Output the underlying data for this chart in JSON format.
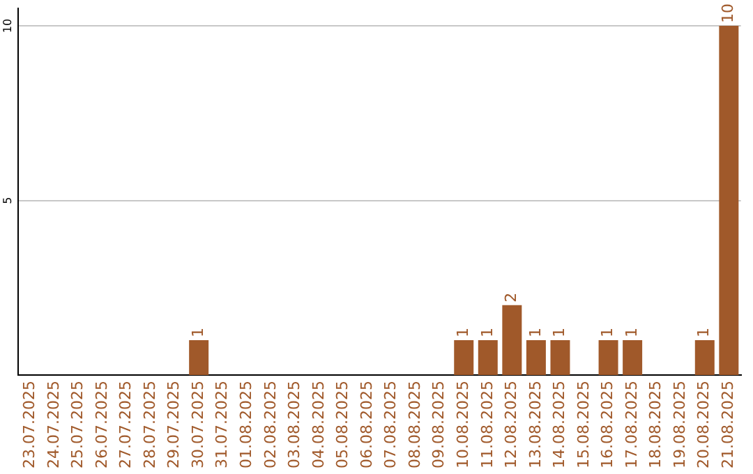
{
  "chart_data": {
    "type": "bar",
    "categories": [
      "23.07.2025",
      "24.07.2025",
      "25.07.2025",
      "26.07.2025",
      "27.07.2025",
      "28.07.2025",
      "29.07.2025",
      "30.07.2025",
      "31.07.2025",
      "01.08.2025",
      "02.08.2025",
      "03.08.2025",
      "04.08.2025",
      "05.08.2025",
      "06.08.2025",
      "07.08.2025",
      "08.08.2025",
      "09.08.2025",
      "10.08.2025",
      "11.08.2025",
      "12.08.2025",
      "13.08.2025",
      "14.08.2025",
      "15.08.2025",
      "16.08.2025",
      "17.08.2025",
      "18.08.2025",
      "19.08.2025",
      "20.08.2025",
      "21.08.2025"
    ],
    "values": [
      0,
      0,
      0,
      0,
      0,
      0,
      0,
      1,
      0,
      0,
      0,
      0,
      0,
      0,
      0,
      0,
      0,
      0,
      1,
      1,
      2,
      1,
      1,
      0,
      1,
      1,
      0,
      0,
      1,
      10
    ],
    "value_labels": [
      null,
      null,
      null,
      null,
      null,
      null,
      null,
      "1",
      null,
      null,
      null,
      null,
      null,
      null,
      null,
      null,
      null,
      null,
      "1",
      "1",
      "2",
      "1",
      "1",
      null,
      "1",
      "1",
      null,
      null,
      "1",
      "10"
    ],
    "color": "#a0592a",
    "ylim": [
      0,
      10.5
    ],
    "yticks": [
      5,
      10
    ],
    "grid": "y",
    "legend": false
  }
}
